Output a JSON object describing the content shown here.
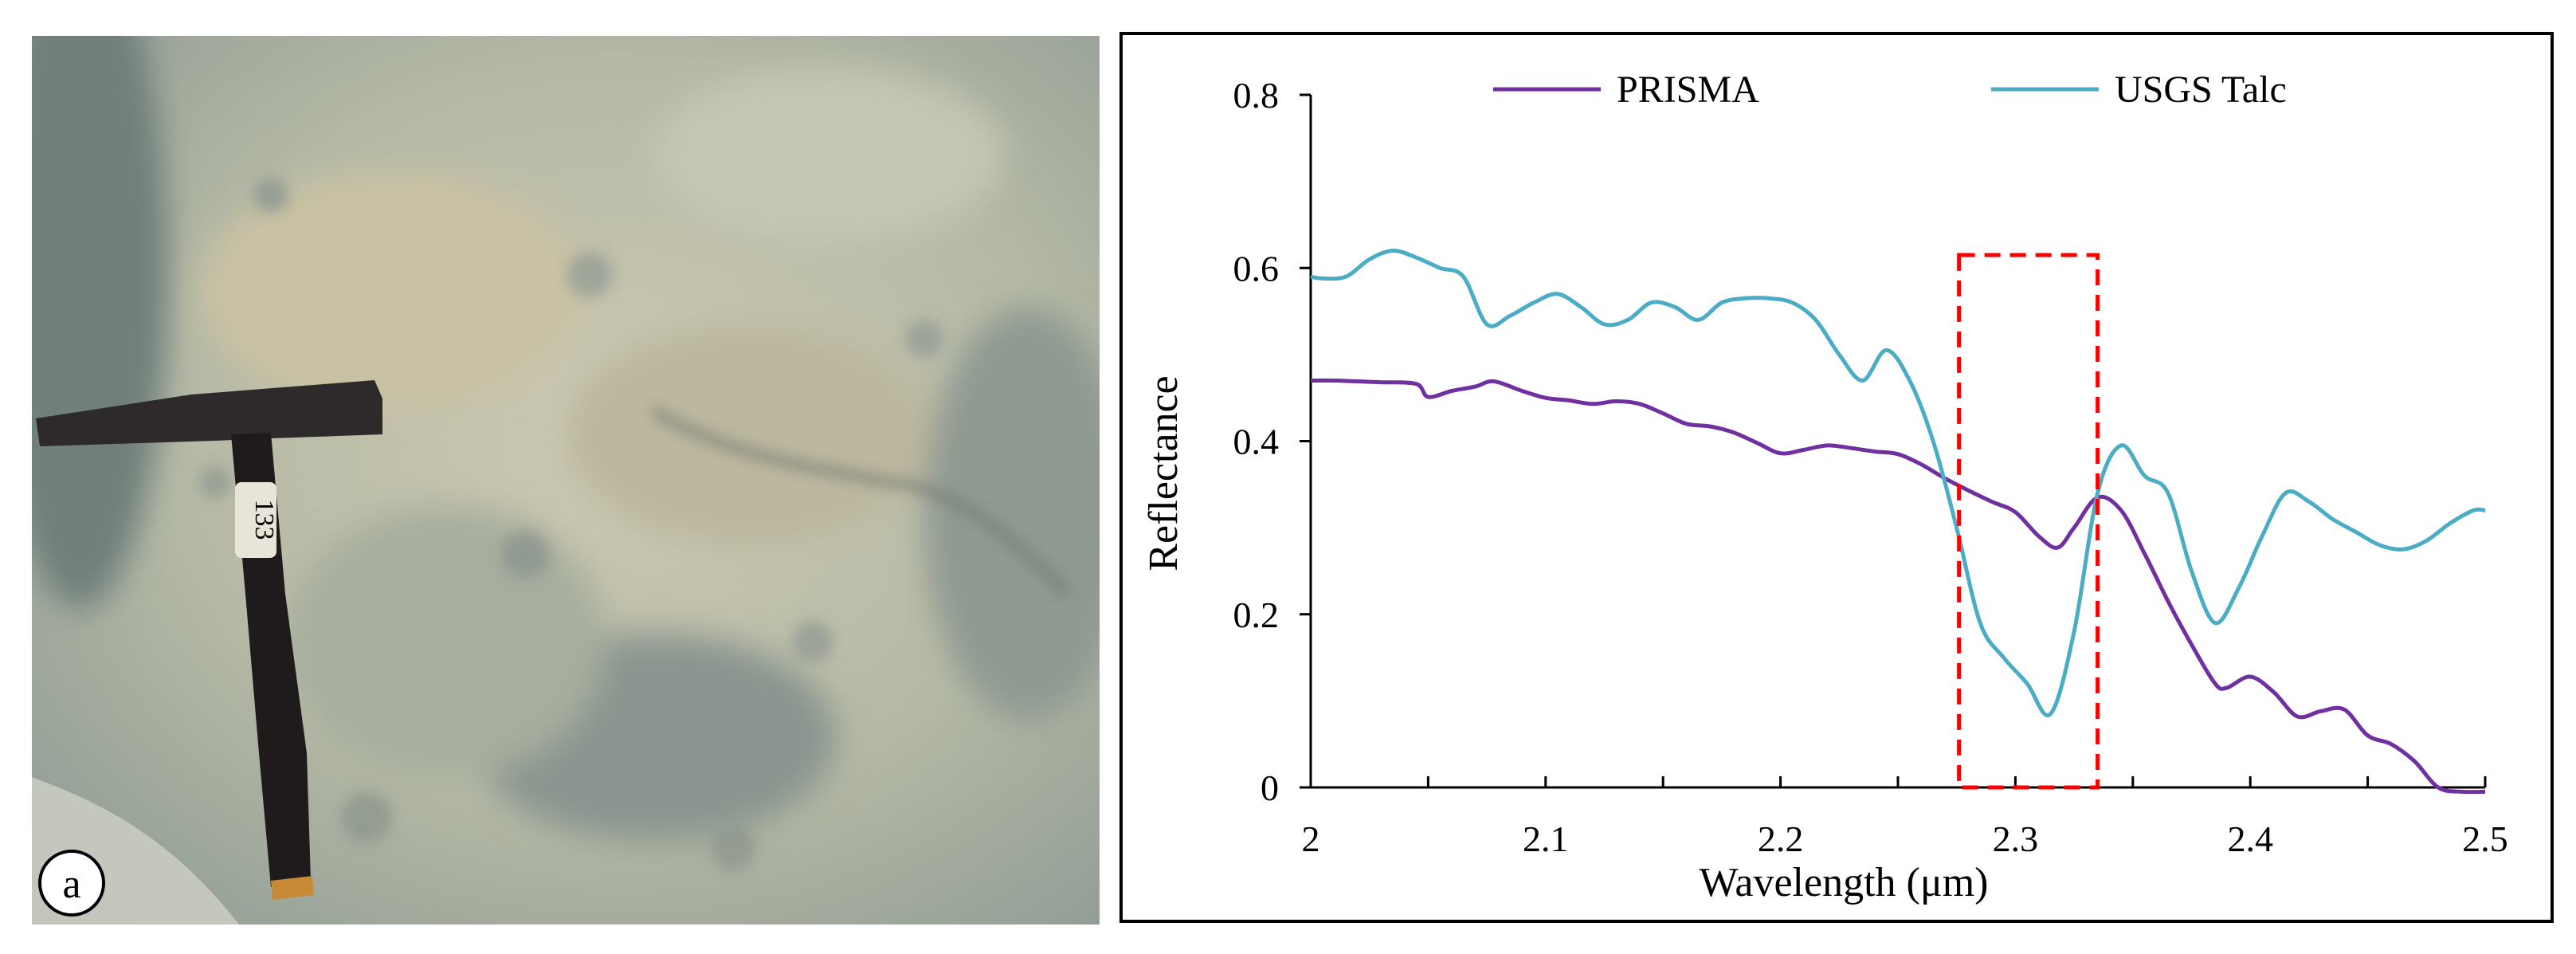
{
  "photo": {
    "panel_label": "a",
    "hammer_tag": "133",
    "colors": {
      "rock_base": "#b9bca7",
      "rock_shadow": "#7f8d88",
      "hammer_head": "#2e2a2b",
      "handle": "#1f1a1c"
    }
  },
  "chart_data": {
    "type": "line",
    "xlabel": "Wavelength (μm)",
    "ylabel": "Reflectance",
    "xlim": [
      2.0,
      2.5
    ],
    "ylim": [
      0,
      0.8
    ],
    "xticks": [
      2,
      2.1,
      2.2,
      2.3,
      2.4,
      2.5
    ],
    "xtick_labels": [
      "2",
      "2.1",
      "2.2",
      "2.3",
      "2.4",
      "2.5"
    ],
    "yticks": [
      0,
      0.2,
      0.4,
      0.6,
      0.8
    ],
    "ytick_labels": [
      "0",
      "0.2",
      "0.4",
      "0.6",
      "0.8"
    ],
    "grid": false,
    "legend": "top",
    "series": [
      {
        "name": "PRISMA",
        "color": "#7030a0",
        "x": [
          2.0,
          2.01,
          2.02,
          2.03,
          2.045,
          2.05,
          2.06,
          2.07,
          2.078,
          2.09,
          2.1,
          2.11,
          2.12,
          2.13,
          2.14,
          2.15,
          2.16,
          2.17,
          2.18,
          2.19,
          2.2,
          2.21,
          2.22,
          2.23,
          2.24,
          2.25,
          2.26,
          2.27,
          2.28,
          2.29,
          2.3,
          2.31,
          2.318,
          2.325,
          2.335,
          2.345,
          2.355,
          2.365,
          2.375,
          2.385,
          2.39,
          2.4,
          2.41,
          2.42,
          2.43,
          2.44,
          2.45,
          2.46,
          2.47,
          2.48,
          2.49,
          2.5
        ],
        "y": [
          0.47,
          0.47,
          0.469,
          0.468,
          0.466,
          0.451,
          0.458,
          0.463,
          0.469,
          0.458,
          0.45,
          0.447,
          0.443,
          0.446,
          0.443,
          0.432,
          0.42,
          0.417,
          0.41,
          0.398,
          0.386,
          0.39,
          0.395,
          0.392,
          0.388,
          0.385,
          0.373,
          0.357,
          0.343,
          0.33,
          0.318,
          0.29,
          0.277,
          0.3,
          0.335,
          0.32,
          0.27,
          0.215,
          0.165,
          0.12,
          0.115,
          0.128,
          0.11,
          0.082,
          0.088,
          0.09,
          0.06,
          0.05,
          0.03,
          0.0,
          -0.005,
          -0.005
        ]
      },
      {
        "name": "USGS Talc",
        "color": "#4bacc6",
        "x": [
          2.0,
          2.005,
          2.015,
          2.025,
          2.035,
          2.045,
          2.055,
          2.065,
          2.075,
          2.085,
          2.095,
          2.105,
          2.115,
          2.125,
          2.135,
          2.145,
          2.155,
          2.165,
          2.175,
          2.185,
          2.195,
          2.205,
          2.215,
          2.225,
          2.235,
          2.245,
          2.255,
          2.265,
          2.275,
          2.285,
          2.295,
          2.305,
          2.315,
          2.325,
          2.335,
          2.345,
          2.355,
          2.365,
          2.375,
          2.385,
          2.395,
          2.405,
          2.415,
          2.425,
          2.435,
          2.445,
          2.455,
          2.465,
          2.475,
          2.485,
          2.495,
          2.5
        ],
        "y": [
          0.59,
          0.588,
          0.59,
          0.61,
          0.62,
          0.612,
          0.6,
          0.59,
          0.535,
          0.545,
          0.56,
          0.57,
          0.555,
          0.535,
          0.54,
          0.56,
          0.555,
          0.54,
          0.56,
          0.565,
          0.565,
          0.56,
          0.54,
          0.5,
          0.47,
          0.505,
          0.47,
          0.4,
          0.3,
          0.19,
          0.15,
          0.12,
          0.085,
          0.18,
          0.34,
          0.395,
          0.36,
          0.34,
          0.25,
          0.19,
          0.23,
          0.29,
          0.34,
          0.33,
          0.31,
          0.295,
          0.28,
          0.275,
          0.285,
          0.305,
          0.32,
          0.32
        ]
      }
    ],
    "annotations": [
      {
        "type": "dashed-rectangle",
        "x": [
          2.276,
          2.335
        ],
        "y": [
          0,
          0.615
        ],
        "color": "#ff0000"
      }
    ]
  }
}
